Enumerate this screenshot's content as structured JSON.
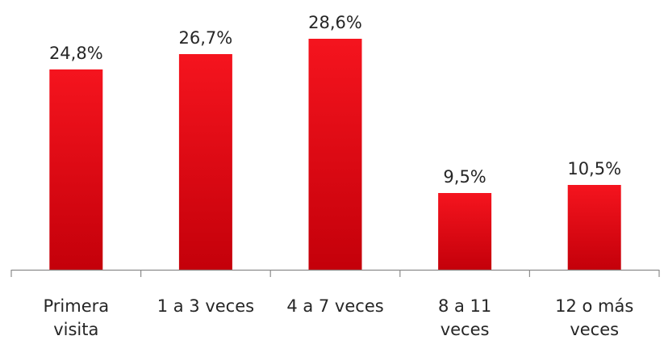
{
  "chart_data": {
    "type": "bar",
    "categories": [
      [
        "Primera",
        "visita"
      ],
      [
        "1 a 3 veces"
      ],
      [
        "4 a 7 veces"
      ],
      [
        "8 a 11",
        "veces"
      ],
      [
        "12 o más",
        "veces"
      ]
    ],
    "values": [
      24.8,
      26.7,
      28.6,
      9.5,
      10.5
    ],
    "data_labels": [
      "24,8%",
      "26,7%",
      "28,6%",
      "9,5%",
      "10,5%"
    ],
    "ylim": [
      0,
      28.6
    ],
    "grid": false,
    "colors": {
      "bar_top": "#f5141e",
      "bar_bottom": "#c4000a",
      "axis": "#8c8c8c",
      "text": "#262626"
    }
  }
}
